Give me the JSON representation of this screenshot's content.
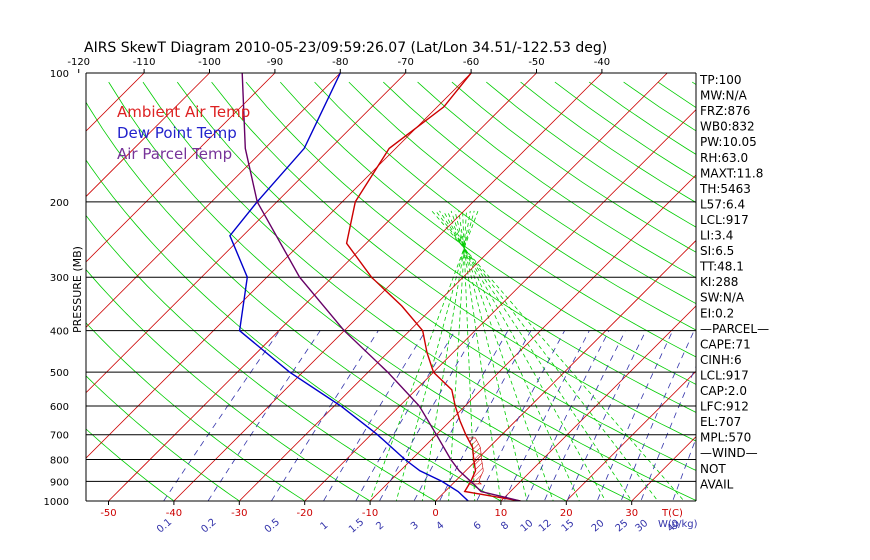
{
  "chart_data": {
    "type": "line",
    "title": "AIRS SkewT Diagram 2010-05-23/09:59:26.07 (Lat/Lon 34.51/-122.53 deg)",
    "ylabel": "PRESSURE (MB)",
    "xlabel": "T(C)",
    "mixing_ratio_label": "W(g/kg)",
    "pressure_ticks": [
      100,
      200,
      300,
      400,
      500,
      600,
      700,
      800,
      900,
      1000
    ],
    "pressure_ticks_labels": [
      "100",
      "200",
      "300",
      "400",
      "500",
      "600",
      "700",
      "800",
      "900",
      "1000"
    ],
    "top_temperature_ticks": [
      "-120",
      "-110",
      "-100",
      "-90",
      "-80",
      "-70",
      "-60",
      "-50",
      "-40"
    ],
    "bottom_temperature_ticks": [
      "-50",
      "-40",
      "-30",
      "-20",
      "-10",
      "0",
      "10",
      "20",
      "30"
    ],
    "mixing_ratio_ticks": [
      "0.1",
      "0.2",
      "0.5",
      "1",
      "1.5",
      "2",
      "3",
      "4",
      "6",
      "8",
      "10",
      "12",
      "15",
      "20",
      "25",
      "30",
      "40"
    ],
    "legend": [
      "Ambient Air Temp",
      "Dew Point Temp",
      "Air Parcel Temp"
    ],
    "series": [
      {
        "name": "Ambient Air Temp",
        "color": "#cc0000",
        "pressure": [
          1000,
          950,
          900,
          850,
          800,
          750,
          700,
          650,
          600,
          550,
          500,
          450,
          400,
          350,
          300,
          250,
          200,
          150,
          120,
          100
        ],
        "temperature": [
          13,
          3,
          2.4,
          1.5,
          -0.5,
          -2.5,
          -5.5,
          -8.5,
          -11.5,
          -14.5,
          -20,
          -24,
          -28,
          -35,
          -44,
          -53,
          -58,
          -61,
          -59,
          -60
        ]
      },
      {
        "name": "Dew Point Temp",
        "color": "#0000cc",
        "pressure": [
          1000,
          950,
          900,
          850,
          800,
          700,
          600,
          500,
          400,
          300,
          240,
          200,
          150,
          100
        ],
        "temperature": [
          5,
          2,
          -2,
          -7,
          -11,
          -19,
          -29,
          -42,
          -56,
          -63,
          -72,
          -73,
          -74,
          -80
        ]
      },
      {
        "name": "Air Parcel Temp",
        "color": "#660066",
        "pressure": [
          1000,
          950,
          917,
          850,
          800,
          700,
          600,
          500,
          400,
          300,
          200,
          150,
          100
        ],
        "temperature": [
          13,
          5.5,
          3.5,
          -1,
          -4,
          -10,
          -17,
          -27,
          -40,
          -55,
          -73,
          -83,
          -95
        ]
      }
    ],
    "stats": [
      "TP:100",
      "MW:N/A",
      "FRZ:876",
      "WB0:832",
      "PW:10.05",
      "RH:63.0",
      "MAXT:11.8",
      "TH:5463",
      "L57:6.4",
      "LCL:917",
      "LI:3.4",
      "SI:6.5",
      "TT:48.1",
      "KI:288",
      "SW:N/A",
      "EI:0.2",
      "—PARCEL—",
      "CAPE:71",
      "CINH:6",
      "LCL:917",
      "CAP:2.0",
      "LFC:912",
      "EL:707",
      "MPL:570",
      "—WIND—",
      "NOT",
      "AVAIL"
    ],
    "colors": {
      "isotherm": "#cc0000",
      "dry_adiabat": "#00cc00",
      "moist_adiabat": "#00cc00",
      "mixing_ratio": "#3333aa",
      "isobar": "#000000",
      "legend_temp": "#dd2222",
      "legend_dew": "#2222cc",
      "legend_parcel": "#773399"
    },
    "grid": true,
    "legend_position": "top-left",
    "cape_shading": true
  }
}
